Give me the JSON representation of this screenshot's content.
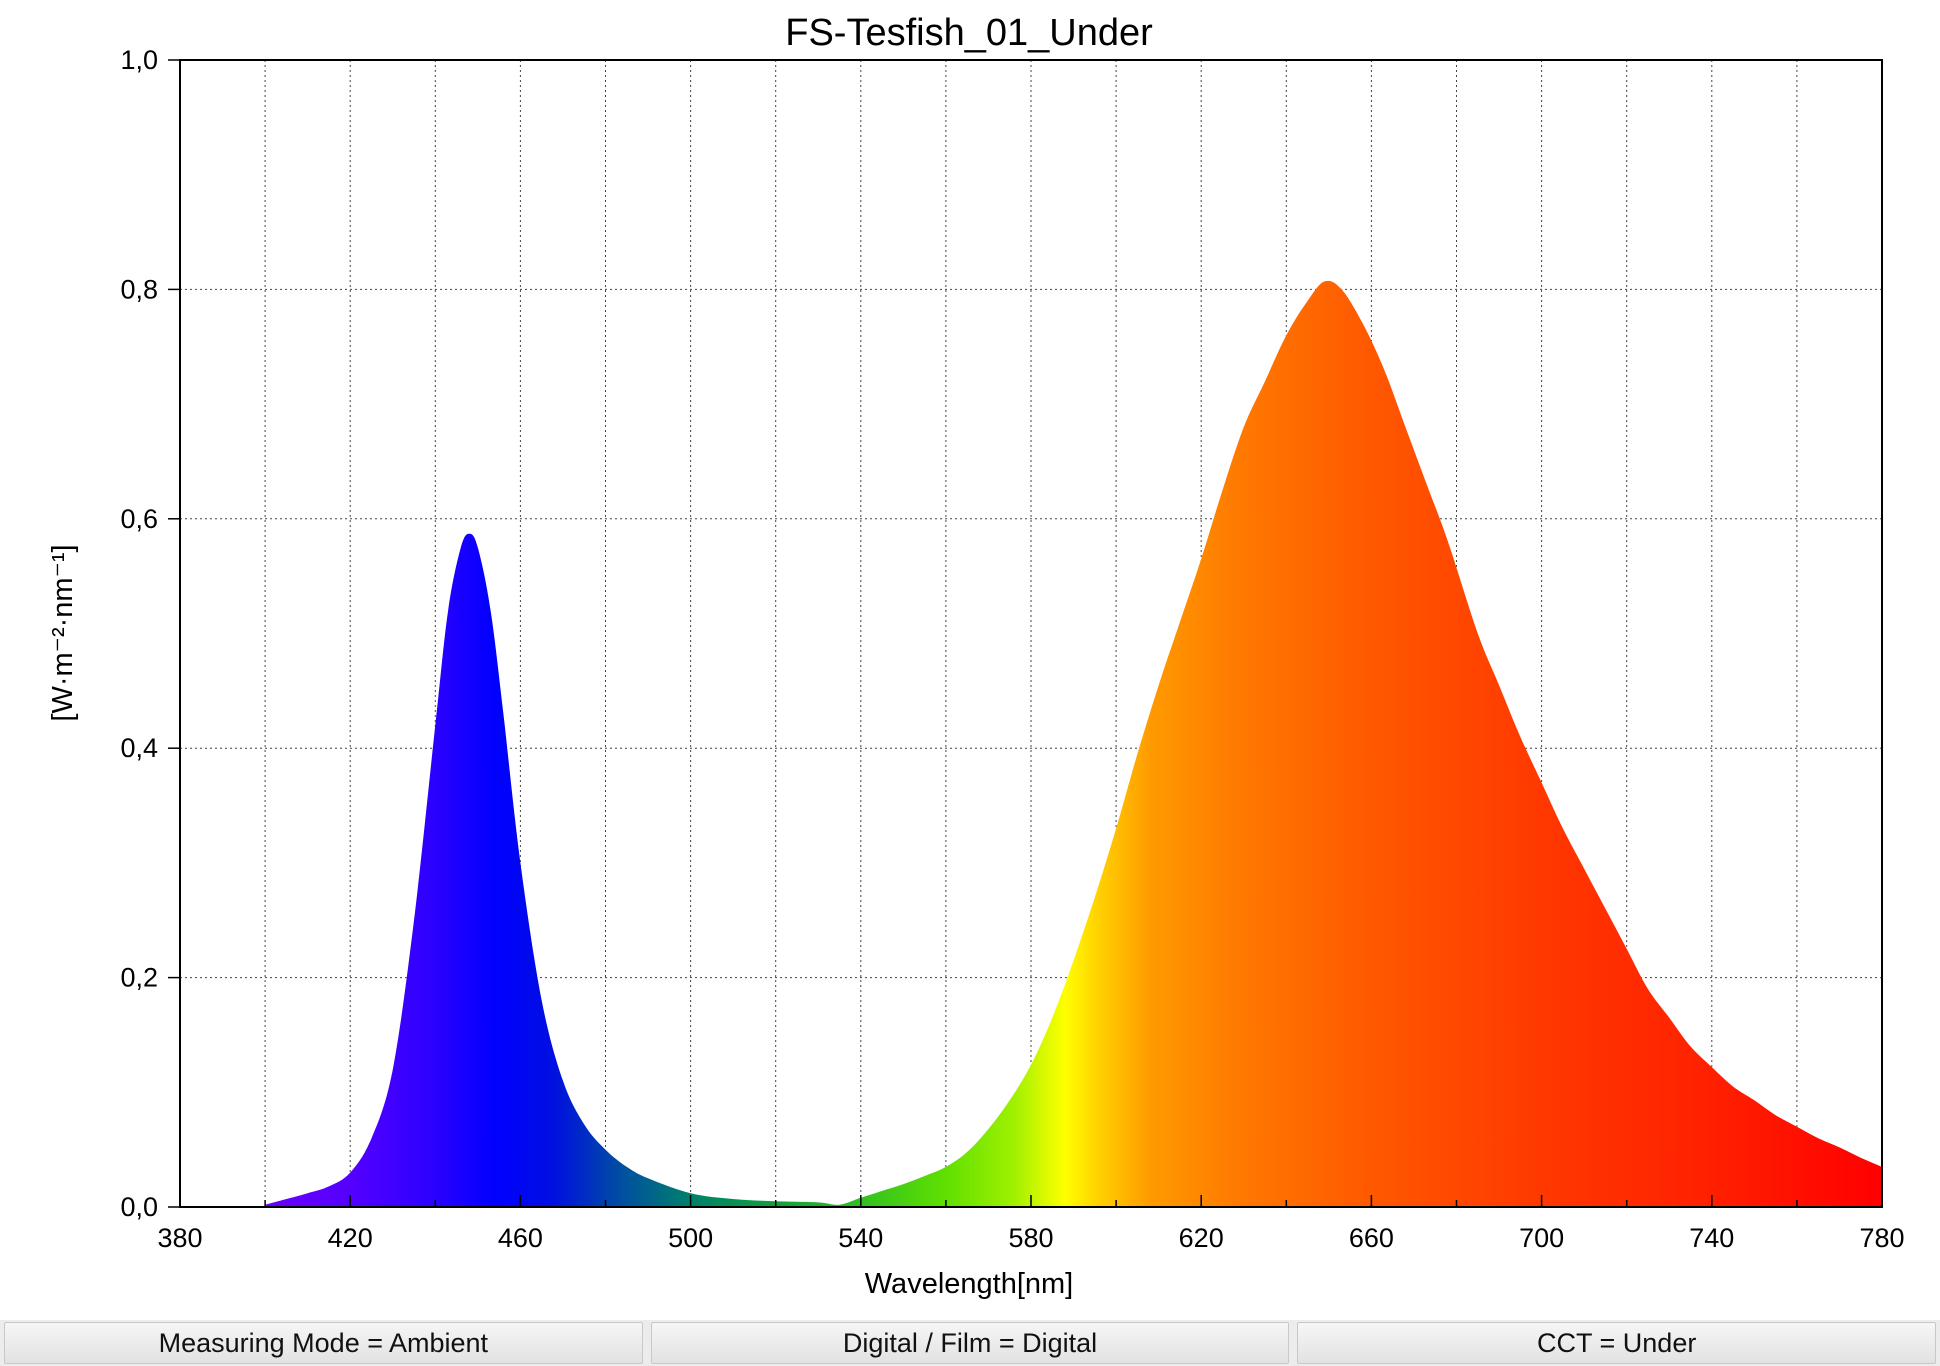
{
  "chart_data": {
    "type": "area",
    "title": "FS-Tesfish_01_Under",
    "xlabel": "Wavelength[nm]",
    "ylabel": "[W·m⁻²·nm⁻¹]",
    "xlim": [
      380,
      780
    ],
    "ylim": [
      0,
      1.0
    ],
    "x_ticks": [
      380,
      420,
      460,
      500,
      540,
      580,
      620,
      660,
      700,
      740,
      780
    ],
    "x_tick_labels": [
      "380",
      "420",
      "460",
      "500",
      "540",
      "580",
      "620",
      "660",
      "700",
      "740",
      "780"
    ],
    "y_ticks": [
      0,
      0.2,
      0.4,
      0.6,
      0.8,
      1.0
    ],
    "y_tick_labels": [
      "0,0",
      "0,2",
      "0,4",
      "0,6",
      "0,8",
      "1,0"
    ],
    "grid": true,
    "fill": "spectral-gradient",
    "x": [
      400,
      405,
      410,
      415,
      420,
      425,
      430,
      435,
      440,
      443,
      446,
      448,
      450,
      453,
      456,
      460,
      465,
      470,
      475,
      480,
      485,
      490,
      500,
      510,
      520,
      530,
      535,
      540,
      545,
      550,
      555,
      560,
      565,
      570,
      575,
      580,
      585,
      590,
      595,
      600,
      605,
      610,
      615,
      620,
      625,
      630,
      635,
      640,
      645,
      649,
      653,
      658,
      663,
      668,
      673,
      678,
      685,
      690,
      695,
      700,
      705,
      710,
      715,
      720,
      725,
      730,
      735,
      740,
      745,
      750,
      755,
      760,
      765,
      770,
      775,
      780
    ],
    "values": [
      0.002,
      0.007,
      0.012,
      0.018,
      0.03,
      0.06,
      0.12,
      0.25,
      0.42,
      0.52,
      0.575,
      0.587,
      0.575,
      0.52,
      0.43,
      0.3,
      0.18,
      0.11,
      0.072,
      0.05,
      0.035,
      0.025,
      0.012,
      0.007,
      0.005,
      0.004,
      0.002,
      0.008,
      0.014,
      0.02,
      0.027,
      0.035,
      0.048,
      0.068,
      0.093,
      0.124,
      0.165,
      0.215,
      0.27,
      0.33,
      0.395,
      0.455,
      0.51,
      0.565,
      0.625,
      0.68,
      0.72,
      0.76,
      0.79,
      0.807,
      0.8,
      0.77,
      0.73,
      0.68,
      0.63,
      0.58,
      0.5,
      0.455,
      0.41,
      0.37,
      0.33,
      0.295,
      0.26,
      0.225,
      0.19,
      0.165,
      0.14,
      0.122,
      0.105,
      0.093,
      0.08,
      0.07,
      0.06,
      0.052,
      0.043,
      0.035
    ]
  },
  "status_bar": {
    "measuring_mode": "Measuring Mode = Ambient",
    "digital_film": "Digital / Film = Digital",
    "cct": "CCT = Under"
  },
  "colors": {
    "background": "#ffffff",
    "grid": "#333333",
    "axis": "#000000",
    "status_bar": "#ececec"
  }
}
